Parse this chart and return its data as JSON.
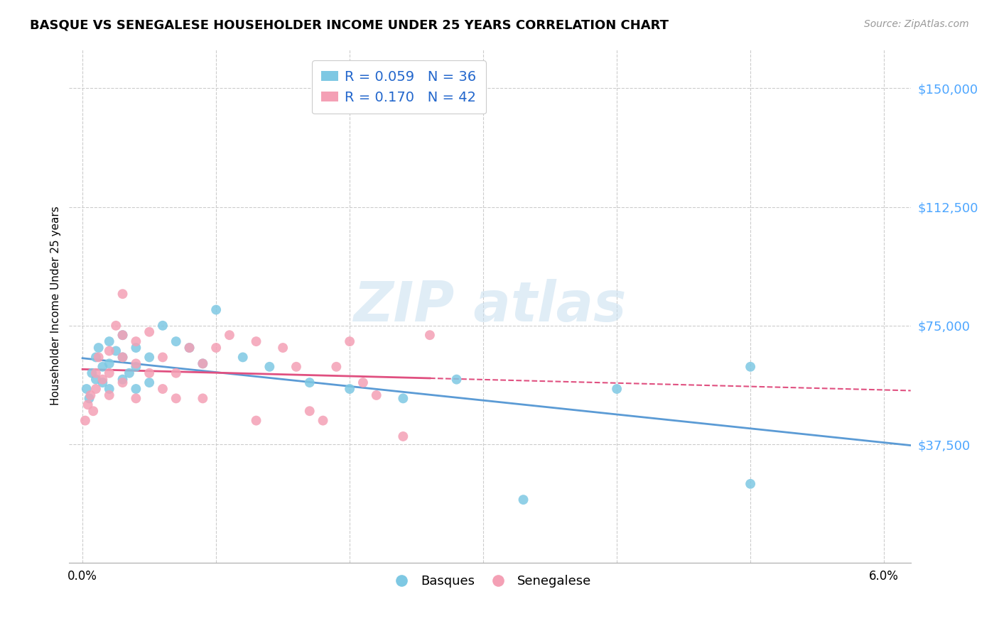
{
  "title": "BASQUE VS SENEGALESE HOUSEHOLDER INCOME UNDER 25 YEARS CORRELATION CHART",
  "source": "Source: ZipAtlas.com",
  "ylabel": "Householder Income Under 25 years",
  "xlabel": "",
  "xlim": [
    -0.001,
    0.062
  ],
  "ylim": [
    0,
    162500
  ],
  "yticks": [
    37500,
    75000,
    112500,
    150000
  ],
  "ytick_labels": [
    "$37,500",
    "$75,000",
    "$112,500",
    "$150,000"
  ],
  "xticks": [
    0.0,
    0.01,
    0.02,
    0.03,
    0.04,
    0.05,
    0.06
  ],
  "xtick_labels": [
    "0.0%",
    "",
    "",
    "",
    "",
    "",
    "6.0%"
  ],
  "basque_color": "#7ec8e3",
  "senegalese_color": "#f4a0b5",
  "trend_basque_color": "#5b9bd5",
  "trend_senegalese_color": "#e05080",
  "R_basque": 0.059,
  "N_basque": 36,
  "R_senegalese": 0.17,
  "N_senegalese": 42,
  "background_color": "#ffffff",
  "grid_color": "#cccccc",
  "basque_x": [
    0.0003,
    0.0005,
    0.0007,
    0.001,
    0.001,
    0.0012,
    0.0015,
    0.0015,
    0.002,
    0.002,
    0.002,
    0.0025,
    0.003,
    0.003,
    0.003,
    0.0035,
    0.004,
    0.004,
    0.004,
    0.005,
    0.005,
    0.006,
    0.007,
    0.008,
    0.009,
    0.01,
    0.012,
    0.014,
    0.017,
    0.02,
    0.024,
    0.028,
    0.033,
    0.04,
    0.05,
    0.05
  ],
  "basque_y": [
    55000,
    52000,
    60000,
    65000,
    58000,
    68000,
    62000,
    57000,
    70000,
    63000,
    55000,
    67000,
    72000,
    65000,
    58000,
    60000,
    68000,
    62000,
    55000,
    65000,
    57000,
    75000,
    70000,
    68000,
    63000,
    80000,
    65000,
    62000,
    57000,
    55000,
    52000,
    58000,
    20000,
    55000,
    62000,
    25000
  ],
  "senegalese_x": [
    0.0002,
    0.0004,
    0.0006,
    0.0008,
    0.001,
    0.001,
    0.0012,
    0.0015,
    0.002,
    0.002,
    0.002,
    0.0025,
    0.003,
    0.003,
    0.003,
    0.003,
    0.004,
    0.004,
    0.004,
    0.005,
    0.005,
    0.006,
    0.006,
    0.007,
    0.007,
    0.008,
    0.009,
    0.009,
    0.01,
    0.011,
    0.013,
    0.013,
    0.015,
    0.016,
    0.017,
    0.018,
    0.019,
    0.02,
    0.021,
    0.022,
    0.024,
    0.026
  ],
  "senegalese_y": [
    45000,
    50000,
    53000,
    48000,
    60000,
    55000,
    65000,
    58000,
    67000,
    60000,
    53000,
    75000,
    85000,
    72000,
    65000,
    57000,
    70000,
    63000,
    52000,
    73000,
    60000,
    65000,
    55000,
    60000,
    52000,
    68000,
    63000,
    52000,
    68000,
    72000,
    70000,
    45000,
    68000,
    62000,
    48000,
    45000,
    62000,
    70000,
    57000,
    53000,
    40000,
    72000
  ]
}
